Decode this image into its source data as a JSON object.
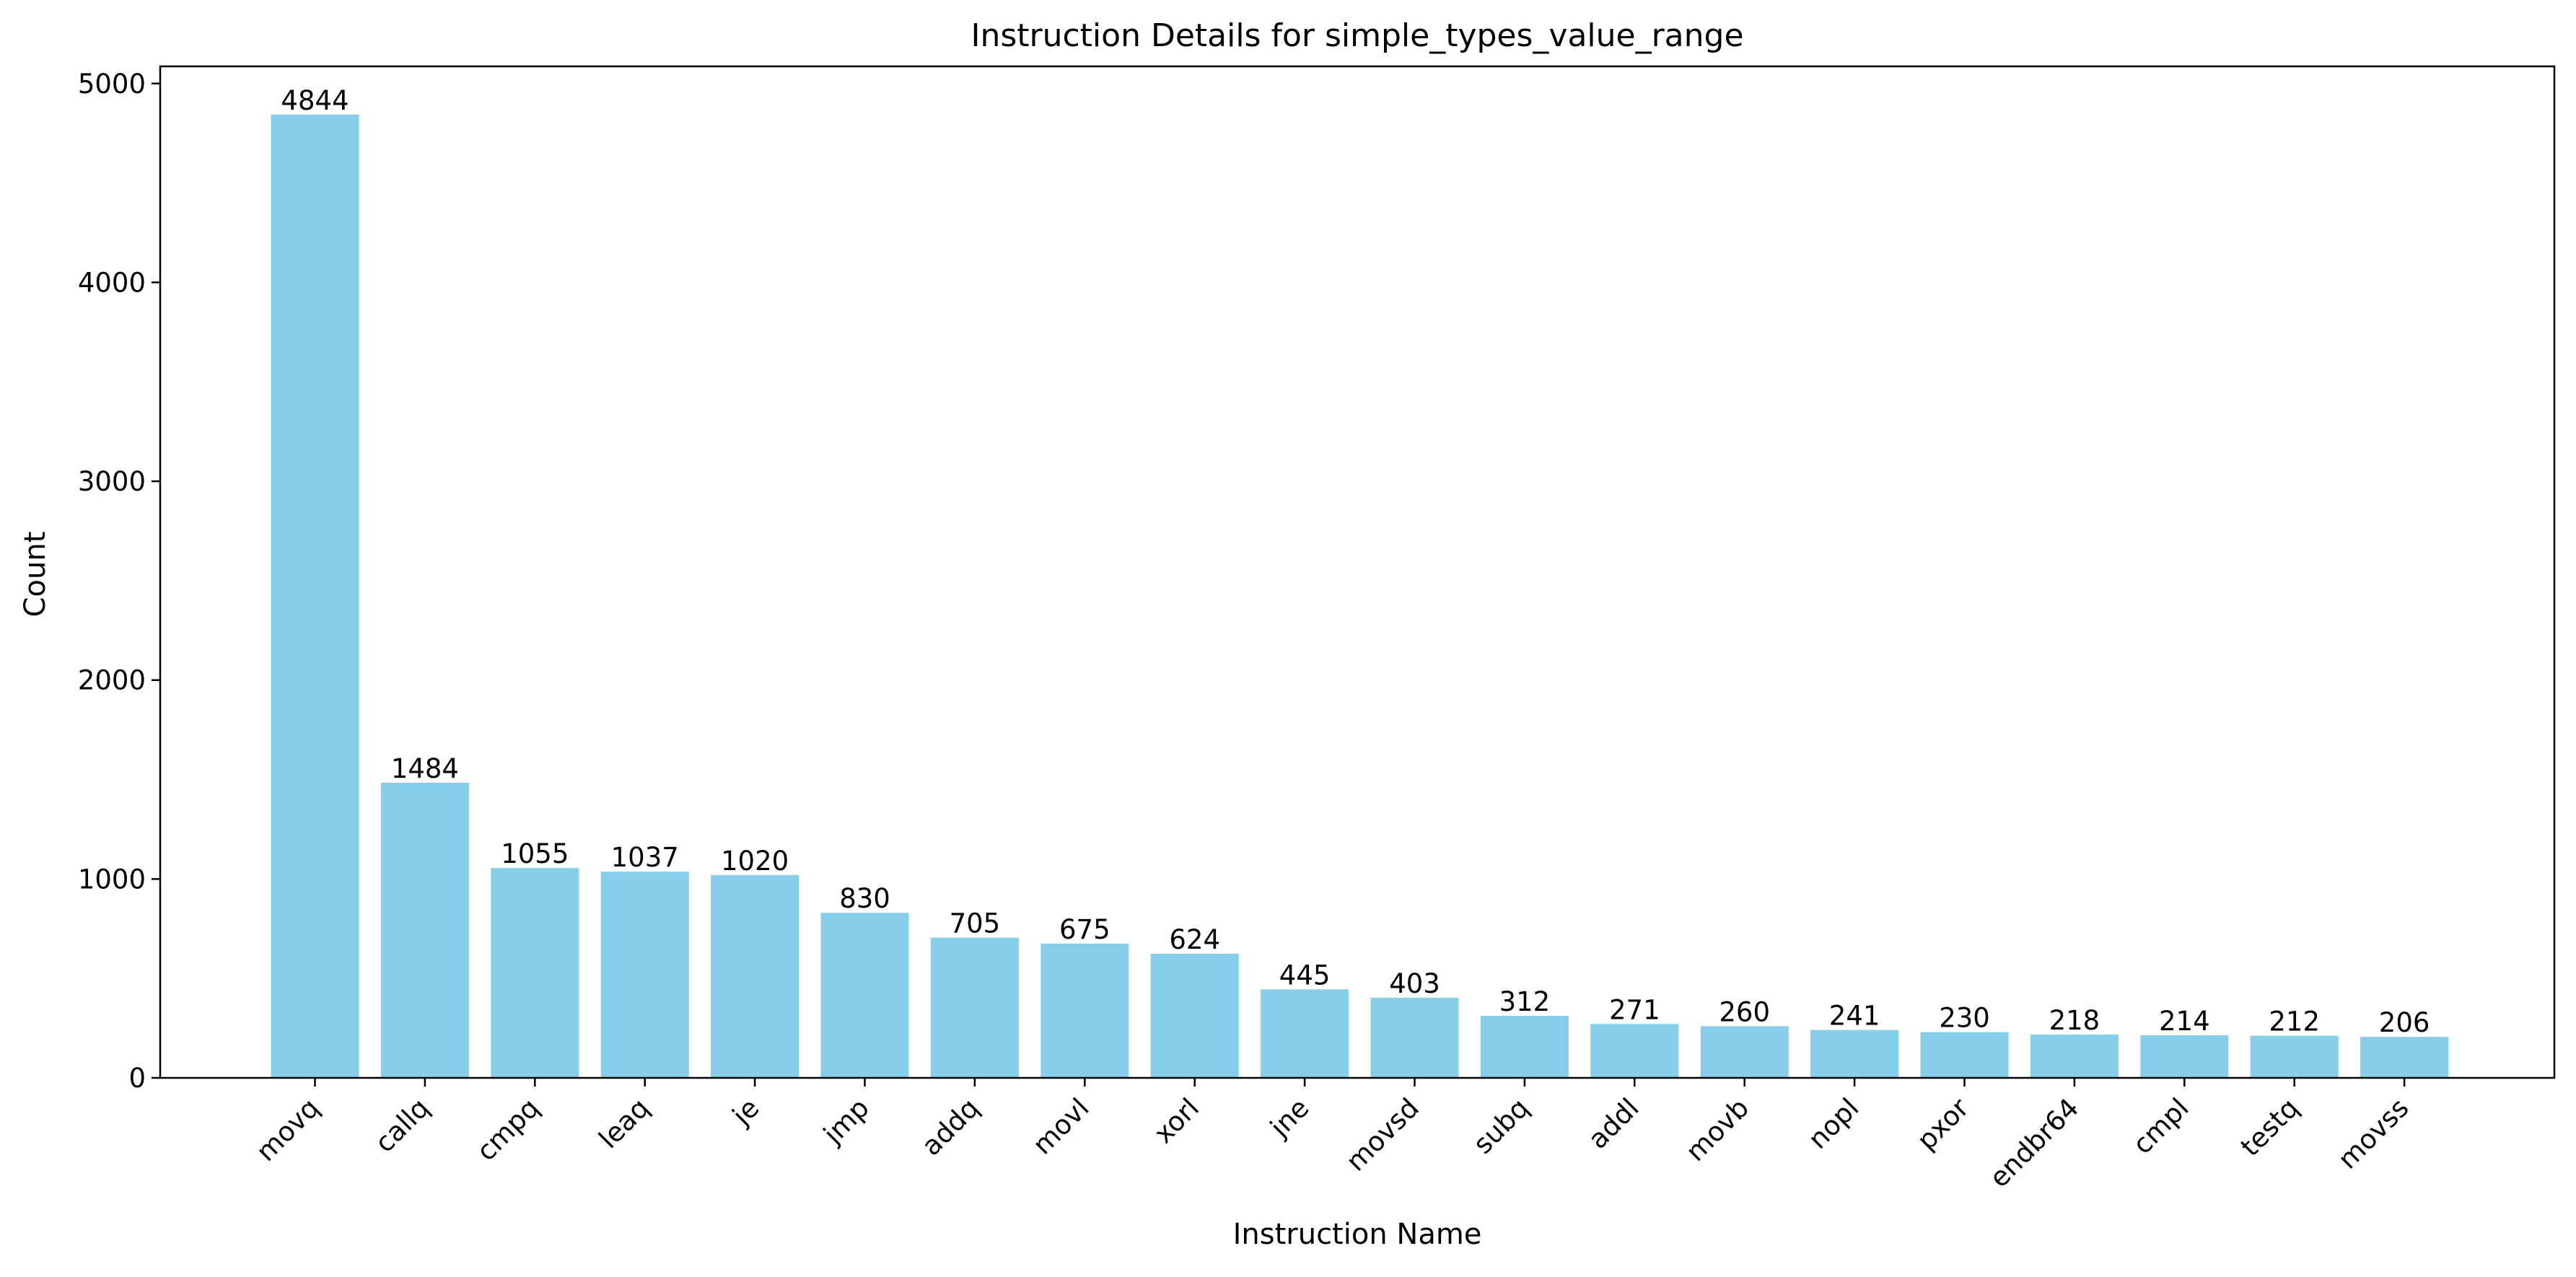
{
  "chart_data": {
    "type": "bar",
    "title": "Instruction Details for simple_types_value_range",
    "xlabel": "Instruction Name",
    "ylabel": "Count",
    "categories": [
      "movq",
      "callq",
      "cmpq",
      "leaq",
      "je",
      "jmp",
      "addq",
      "movl",
      "xorl",
      "jne",
      "movsd",
      "subq",
      "addl",
      "movb",
      "nopl",
      "pxor",
      "endbr64",
      "cmpl",
      "testq",
      "movss"
    ],
    "values": [
      4844,
      1484,
      1055,
      1037,
      1020,
      830,
      705,
      675,
      624,
      445,
      403,
      312,
      271,
      260,
      241,
      230,
      218,
      214,
      212,
      206
    ],
    "data_labels": [
      "4844",
      "1484",
      "1055",
      "1037",
      "1020",
      "830",
      "705",
      "675",
      "624",
      "445",
      "403",
      "312",
      "271",
      "260",
      "241",
      "230",
      "218",
      "214",
      "212",
      "206"
    ],
    "yticks": [
      0,
      1000,
      2000,
      3000,
      4000,
      5000
    ],
    "ytick_labels": [
      "0",
      "1000",
      "2000",
      "3000",
      "4000",
      "5000"
    ],
    "ylim": [
      0,
      5086.2
    ],
    "bar_color": "#87CEEB",
    "grid": false,
    "legend": "none"
  }
}
